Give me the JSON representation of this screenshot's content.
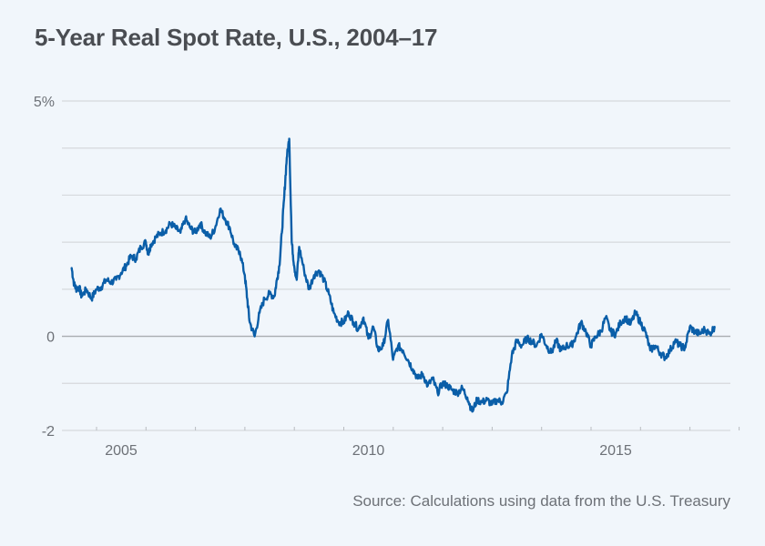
{
  "chart_data": {
    "type": "line",
    "title": "5-Year Real Spot Rate, U.S., 2004–17",
    "source": "Source: Calculations using data from the U.S. Treasury",
    "xlabel": "",
    "ylabel": "",
    "xlim": [
      2003.9,
      2017.3
    ],
    "ylim": [
      -2,
      5
    ],
    "grid": true,
    "y_gridlines": [
      5,
      4,
      3,
      2,
      1,
      0,
      -1,
      -2
    ],
    "y_ticks": [
      {
        "value": 5,
        "label": "5%"
      },
      {
        "value": 0,
        "label": "0"
      },
      {
        "value": -2,
        "label": "-2"
      }
    ],
    "x_ticks": [
      {
        "value": 2005,
        "label": "2005"
      },
      {
        "value": 2010,
        "label": "2010"
      },
      {
        "value": 2015,
        "label": "2015"
      }
    ],
    "x_minor_ticks": [
      2004,
      2005,
      2006,
      2007,
      2008,
      2009,
      2010,
      2011,
      2012,
      2013,
      2014,
      2015,
      2016,
      2017
    ],
    "line_color": "#0a5ea8",
    "series": [
      {
        "name": "5-Year Real Spot Rate",
        "x": [
          2004.0,
          2004.05,
          2004.1,
          2004.15,
          2004.2,
          2004.3,
          2004.4,
          2004.5,
          2004.6,
          2004.7,
          2004.8,
          2004.9,
          2005.0,
          2005.1,
          2005.2,
          2005.3,
          2005.4,
          2005.5,
          2005.55,
          2005.6,
          2005.7,
          2005.8,
          2005.9,
          2006.0,
          2006.1,
          2006.2,
          2006.3,
          2006.4,
          2006.5,
          2006.6,
          2006.7,
          2006.8,
          2006.9,
          2007.0,
          2007.1,
          2007.2,
          2007.3,
          2007.4,
          2007.5,
          2007.55,
          2007.6,
          2007.7,
          2007.8,
          2007.9,
          2008.0,
          2008.1,
          2008.15,
          2008.2,
          2008.25,
          2008.3,
          2008.35,
          2008.4,
          2008.45,
          2008.5,
          2008.55,
          2008.6,
          2008.7,
          2008.8,
          2008.9,
          2009.0,
          2009.1,
          2009.2,
          2009.3,
          2009.4,
          2009.5,
          2009.6,
          2009.7,
          2009.8,
          2009.9,
          2010.0,
          2010.1,
          2010.2,
          2010.3,
          2010.4,
          2010.5,
          2010.6,
          2010.7,
          2010.8,
          2010.9,
          2011.0,
          2011.1,
          2011.2,
          2011.3,
          2011.4,
          2011.5,
          2011.6,
          2011.7,
          2011.8,
          2011.9,
          2012.0,
          2012.1,
          2012.2,
          2012.3,
          2012.4,
          2012.5,
          2012.6,
          2012.7,
          2012.8,
          2012.9,
          2013.0,
          2013.1,
          2013.2,
          2013.3,
          2013.4,
          2013.5,
          2013.6,
          2013.7,
          2013.8,
          2013.9,
          2014.0,
          2014.1,
          2014.2,
          2014.3,
          2014.4,
          2014.5,
          2014.6,
          2014.7,
          2014.8,
          2014.9,
          2015.0,
          2015.1,
          2015.2,
          2015.3,
          2015.4,
          2015.5,
          2015.6,
          2015.7,
          2015.8,
          2015.9,
          2016.0,
          2016.1,
          2016.2,
          2016.3,
          2016.4,
          2016.5,
          2016.6,
          2016.7,
          2016.8,
          2016.9,
          2017.0
        ],
        "values": [
          1.45,
          1.1,
          1.0,
          1.05,
          0.85,
          1.0,
          0.8,
          1.0,
          1.05,
          1.2,
          1.15,
          1.2,
          1.35,
          1.5,
          1.7,
          1.65,
          1.9,
          2.0,
          1.75,
          1.95,
          2.1,
          2.2,
          2.25,
          2.4,
          2.3,
          2.2,
          2.5,
          2.3,
          2.2,
          2.4,
          2.2,
          2.1,
          2.3,
          2.7,
          2.5,
          2.3,
          1.9,
          1.8,
          1.3,
          0.8,
          0.3,
          0.0,
          0.5,
          0.8,
          0.9,
          0.85,
          1.2,
          1.5,
          2.2,
          3.0,
          3.8,
          4.2,
          2.0,
          1.5,
          1.2,
          1.9,
          1.4,
          1.0,
          1.3,
          1.4,
          1.2,
          0.9,
          0.5,
          0.3,
          0.3,
          0.5,
          0.3,
          0.15,
          0.4,
          -0.05,
          0.2,
          -0.3,
          -0.2,
          0.35,
          -0.5,
          -0.2,
          -0.3,
          -0.5,
          -0.7,
          -0.9,
          -0.8,
          -1.05,
          -0.9,
          -1.2,
          -1.0,
          -1.05,
          -1.15,
          -1.2,
          -1.1,
          -1.3,
          -1.6,
          -1.35,
          -1.4,
          -1.35,
          -1.45,
          -1.35,
          -1.4,
          -1.2,
          -0.4,
          -0.1,
          -0.2,
          -0.05,
          -0.1,
          -0.2,
          0.05,
          -0.2,
          -0.35,
          -0.1,
          -0.3,
          -0.2,
          -0.2,
          0.0,
          0.3,
          0.1,
          -0.2,
          0.0,
          0.1,
          0.4,
          0.1,
          0.05,
          0.3,
          0.4,
          0.25,
          0.5,
          0.3,
          0.1,
          -0.3,
          -0.2,
          -0.35,
          -0.45,
          -0.3,
          -0.1,
          -0.2,
          -0.25,
          0.2,
          0.1,
          0.05,
          0.15,
          0.05,
          0.2
        ]
      }
    ]
  }
}
